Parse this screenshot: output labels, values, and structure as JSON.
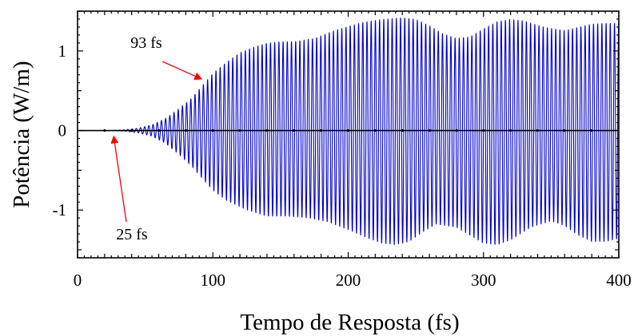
{
  "chart_data": {
    "type": "line",
    "title": "",
    "xlabel": "Tempo de Resposta (fs)",
    "ylabel": "Potência (W/m)",
    "xlim": [
      0,
      400
    ],
    "ylim": [
      -1.6,
      1.5
    ],
    "x_ticks": [
      0,
      100,
      200,
      300,
      400
    ],
    "x_tick_labels": [
      "0",
      "100",
      "200",
      "300",
      "400"
    ],
    "y_ticks": [
      1,
      0,
      -1
    ],
    "y_tick_labels": [
      "1",
      "0",
      "-1"
    ],
    "grid": false,
    "legend": "none",
    "series": [
      {
        "color": "#0000cc",
        "oscillation_period_fs": 3.1,
        "envelope_upper": {
          "x": [
            0,
            25,
            35,
            45,
            55,
            65,
            75,
            85,
            93,
            100,
            110,
            120,
            130,
            140,
            150,
            160,
            175,
            190,
            210,
            225,
            240,
            250,
            260,
            270,
            280,
            290,
            300,
            310,
            320,
            330,
            345,
            360,
            370,
            380,
            390,
            400
          ],
          "y": [
            0,
            0,
            0.01,
            0.03,
            0.07,
            0.15,
            0.27,
            0.42,
            0.58,
            0.72,
            0.86,
            0.98,
            1.05,
            1.1,
            1.12,
            1.12,
            1.16,
            1.26,
            1.36,
            1.4,
            1.42,
            1.4,
            1.32,
            1.22,
            1.16,
            1.18,
            1.28,
            1.37,
            1.4,
            1.38,
            1.3,
            1.26,
            1.3,
            1.34,
            1.35,
            1.35
          ]
        },
        "envelope_lower": {
          "x": [
            0,
            25,
            35,
            45,
            55,
            65,
            75,
            85,
            93,
            100,
            110,
            125,
            140,
            155,
            170,
            185,
            200,
            215,
            225,
            235,
            245,
            255,
            265,
            280,
            290,
            300,
            310,
            320,
            335,
            350,
            360,
            370,
            380,
            390,
            400
          ],
          "y": [
            0,
            0,
            -0.01,
            -0.03,
            -0.07,
            -0.16,
            -0.3,
            -0.46,
            -0.62,
            -0.75,
            -0.88,
            -1.0,
            -1.08,
            -1.08,
            -1.1,
            -1.15,
            -1.25,
            -1.36,
            -1.42,
            -1.44,
            -1.4,
            -1.28,
            -1.18,
            -1.22,
            -1.32,
            -1.42,
            -1.44,
            -1.38,
            -1.22,
            -1.14,
            -1.2,
            -1.32,
            -1.4,
            -1.4,
            -1.36
          ]
        }
      }
    ],
    "annotations": [
      {
        "text": "93 fs",
        "x": 93,
        "y": 0.62
      },
      {
        "text": "25 fs",
        "x": 25,
        "y": 0
      }
    ]
  }
}
